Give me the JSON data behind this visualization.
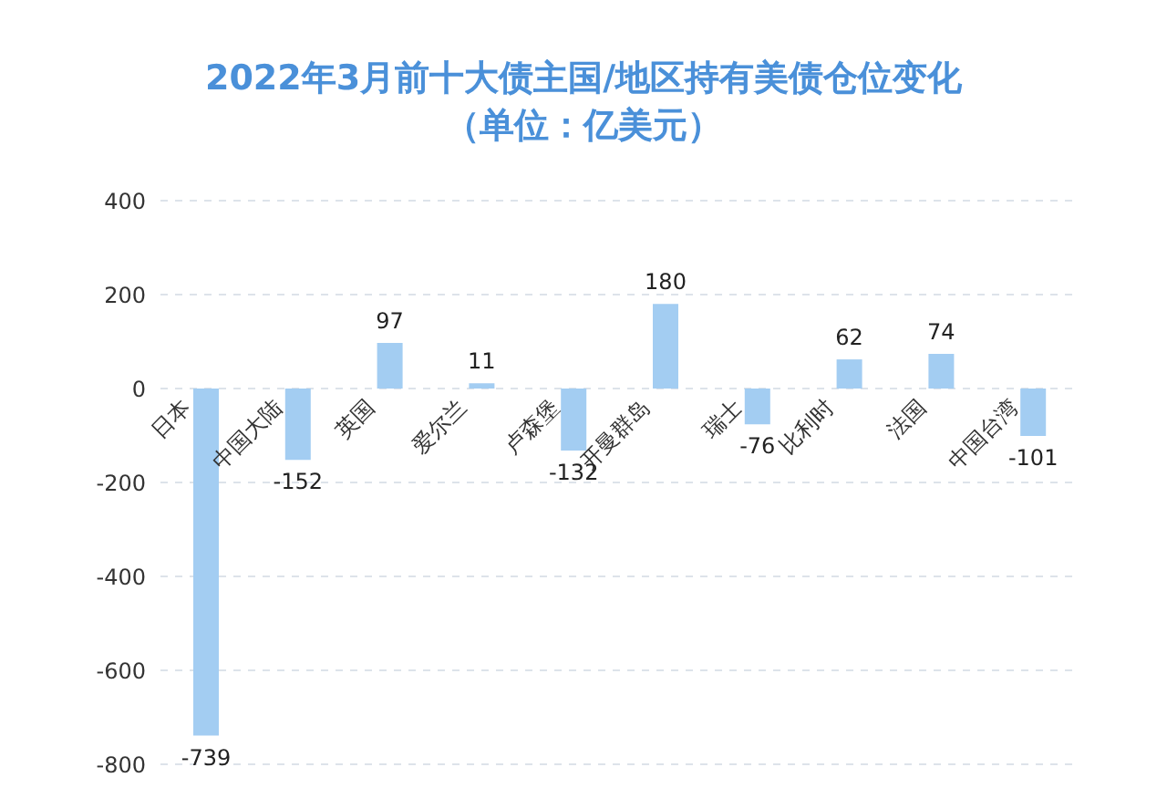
{
  "chart_data": {
    "type": "bar",
    "title": "2022年3月前十大债主国/地区持有美债仓位变化",
    "subtitle": "（单位：亿美元）",
    "categories": [
      "日本",
      "中国大陆",
      "英国",
      "爱尔兰",
      "卢森堡",
      "开曼群岛",
      "瑞士",
      "比利时",
      "法国",
      "中国台湾"
    ],
    "values": [
      -739,
      -152,
      97,
      11,
      -132,
      180,
      -76,
      62,
      74,
      -101
    ],
    "color": "#a3cdf2",
    "ylim": [
      -800,
      400
    ],
    "yticks": [
      -800,
      -600,
      -400,
      -200,
      0,
      200,
      400
    ],
    "grid": "y",
    "data_labels": true
  }
}
